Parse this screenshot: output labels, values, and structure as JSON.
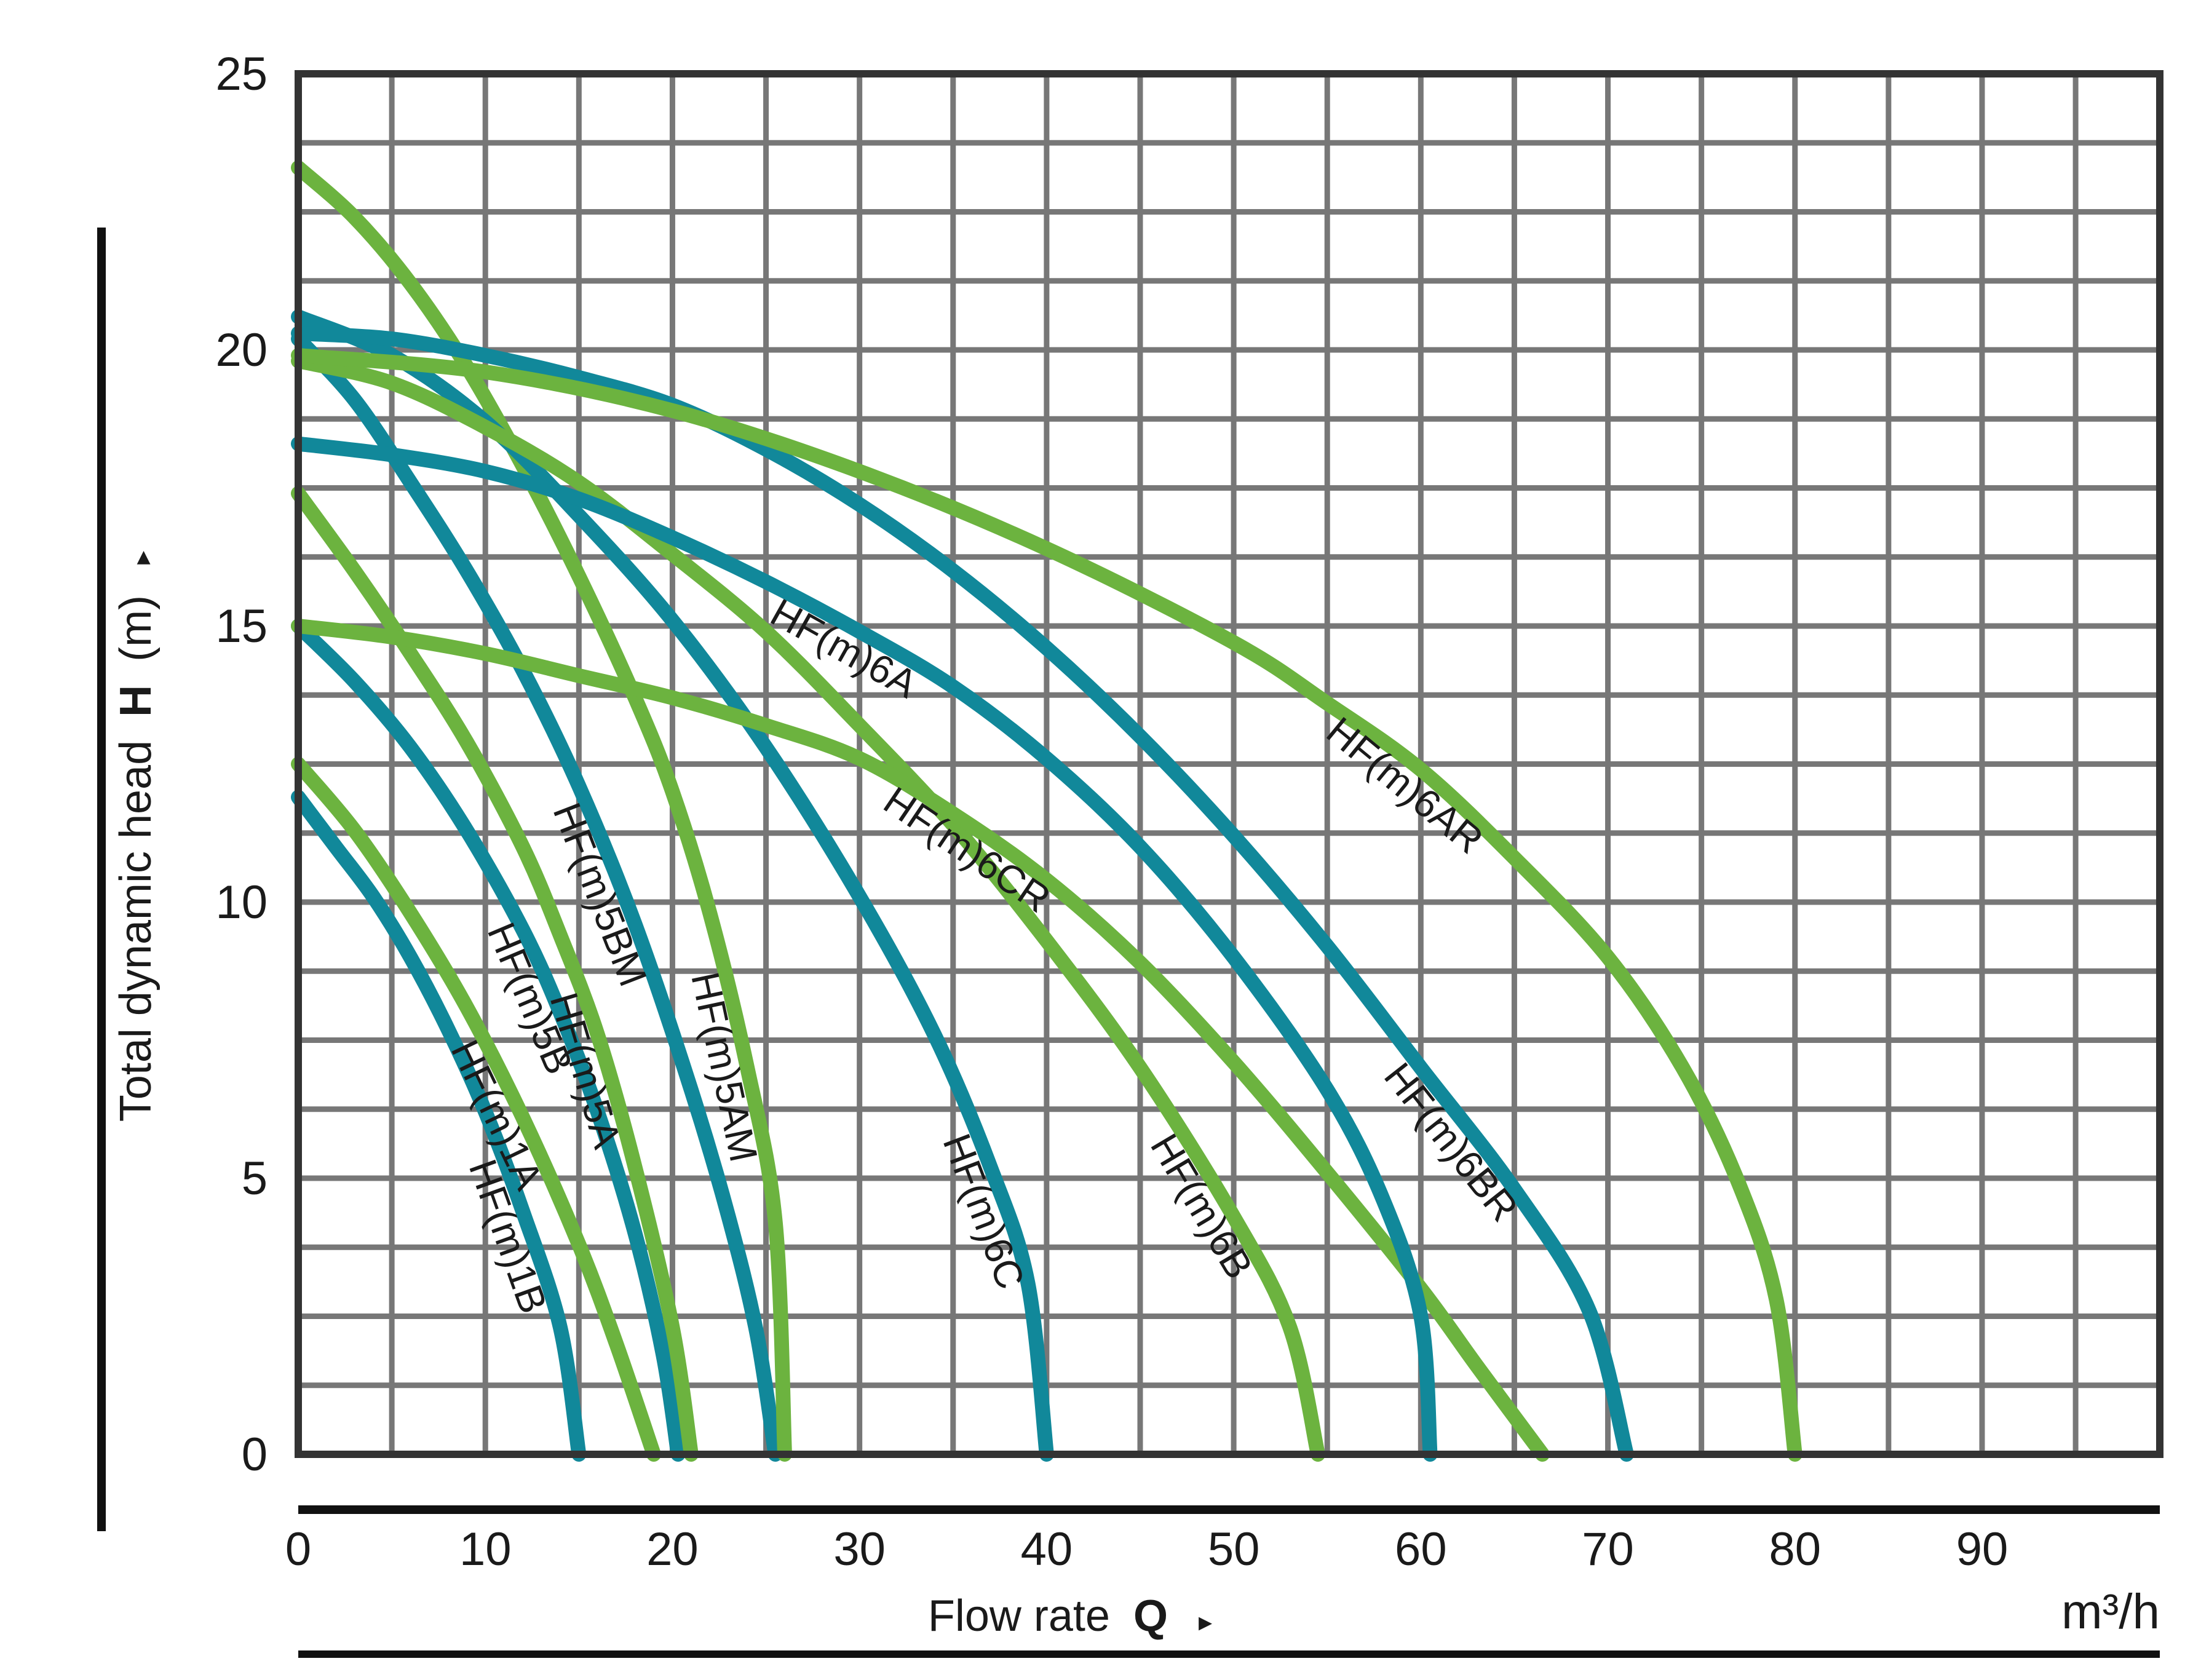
{
  "chart_data": {
    "type": "line",
    "xlabel": "Flow rate",
    "xlabel_symbol": "Q",
    "ylabel": "Total dynamic head",
    "ylabel_symbol": "H",
    "ylabel_unit": "(m)",
    "x_unit": "m³/h",
    "arrow_glyph": "▸",
    "xlim": [
      0,
      99.5
    ],
    "ylim": [
      0,
      25
    ],
    "x_ticks": [
      "0",
      "10",
      "20",
      "30",
      "40",
      "50",
      "60",
      "70",
      "80",
      "90"
    ],
    "y_ticks": [
      "0",
      "5",
      "10",
      "15",
      "20",
      "25"
    ],
    "grid": true,
    "colors": {
      "teal": "#11889a",
      "green": "#6cb33f",
      "grid": "#777777",
      "frame": "#333333"
    },
    "series": [
      {
        "name": "HF(m)1B",
        "color": "teal",
        "points": [
          [
            0,
            11.9
          ],
          [
            2,
            11.0
          ],
          [
            4,
            10.1
          ],
          [
            6,
            9.0
          ],
          [
            8,
            7.7
          ],
          [
            10,
            6.2
          ],
          [
            12,
            4.4
          ],
          [
            14,
            2.3
          ],
          [
            15,
            0
          ]
        ]
      },
      {
        "name": "HF(m)1A",
        "color": "green",
        "points": [
          [
            0,
            12.5
          ],
          [
            3,
            11.3
          ],
          [
            6,
            9.8
          ],
          [
            9,
            8.1
          ],
          [
            12,
            6.1
          ],
          [
            15,
            3.8
          ],
          [
            17,
            2.0
          ],
          [
            19,
            0
          ]
        ]
      },
      {
        "name": "HF(m)5B",
        "color": "teal",
        "points": [
          [
            0,
            15.0
          ],
          [
            3,
            14.0
          ],
          [
            6,
            12.8
          ],
          [
            9,
            11.3
          ],
          [
            12,
            9.5
          ],
          [
            14,
            8.0
          ],
          [
            16,
            6.2
          ],
          [
            18,
            4.0
          ],
          [
            19.5,
            1.8
          ],
          [
            20.3,
            0
          ]
        ]
      },
      {
        "name": "HF(m)5A",
        "color": "green",
        "points": [
          [
            0,
            17.4
          ],
          [
            3,
            16.0
          ],
          [
            6,
            14.5
          ],
          [
            9,
            12.9
          ],
          [
            12,
            11.0
          ],
          [
            14,
            9.4
          ],
          [
            16,
            7.6
          ],
          [
            18,
            5.2
          ],
          [
            20,
            2.3
          ],
          [
            21,
            0
          ]
        ]
      },
      {
        "name": "HF(m)5BM",
        "color": "teal",
        "points": [
          [
            0,
            20.2
          ],
          [
            3,
            19.1
          ],
          [
            6,
            17.6
          ],
          [
            9,
            16.0
          ],
          [
            12,
            14.2
          ],
          [
            15,
            12.1
          ],
          [
            18,
            9.6
          ],
          [
            21,
            6.6
          ],
          [
            23,
            4.3
          ],
          [
            24.5,
            2.2
          ],
          [
            25.5,
            0
          ]
        ]
      },
      {
        "name": "HF(m)5AM",
        "color": "green",
        "points": [
          [
            0,
            23.3
          ],
          [
            3,
            22.4
          ],
          [
            6,
            21.2
          ],
          [
            9,
            19.7
          ],
          [
            12,
            17.9
          ],
          [
            15,
            15.9
          ],
          [
            18,
            13.7
          ],
          [
            20,
            12.0
          ],
          [
            22,
            9.8
          ],
          [
            24,
            7.0
          ],
          [
            25.5,
            4.2
          ],
          [
            26,
            0
          ]
        ]
      },
      {
        "name": "HF(m)6C",
        "color": "teal",
        "points": [
          [
            0,
            20.6
          ],
          [
            5,
            19.9
          ],
          [
            10,
            18.7
          ],
          [
            15,
            17.0
          ],
          [
            20,
            15.1
          ],
          [
            25,
            12.8
          ],
          [
            30,
            10.1
          ],
          [
            34,
            7.6
          ],
          [
            37,
            5.2
          ],
          [
            39,
            3.1
          ],
          [
            40,
            0
          ]
        ]
      },
      {
        "name": "HF(m)6B",
        "color": "green",
        "points": [
          [
            0,
            19.8
          ],
          [
            5,
            19.4
          ],
          [
            10,
            18.6
          ],
          [
            15,
            17.6
          ],
          [
            20,
            16.3
          ],
          [
            25,
            14.9
          ],
          [
            30,
            13.2
          ],
          [
            35,
            11.4
          ],
          [
            40,
            9.3
          ],
          [
            45,
            7.0
          ],
          [
            50,
            4.3
          ],
          [
            53,
            2.3
          ],
          [
            54.5,
            0
          ]
        ]
      },
      {
        "name": "HF(m)6CR",
        "color": "green",
        "points": [
          [
            0,
            15.0
          ],
          [
            5,
            14.8
          ],
          [
            10,
            14.5
          ],
          [
            15,
            14.1
          ],
          [
            20,
            13.7
          ],
          [
            25,
            13.2
          ],
          [
            30,
            12.6
          ],
          [
            35,
            11.6
          ],
          [
            40,
            10.4
          ],
          [
            45,
            8.9
          ],
          [
            50,
            7.1
          ],
          [
            55,
            5.1
          ],
          [
            60,
            3.0
          ],
          [
            63,
            1.6
          ],
          [
            66.5,
            0
          ]
        ]
      },
      {
        "name": "HF(m)6A",
        "color": "teal",
        "points": [
          [
            0,
            18.3
          ],
          [
            5,
            18.1
          ],
          [
            10,
            17.8
          ],
          [
            15,
            17.3
          ],
          [
            20,
            16.6
          ],
          [
            25,
            15.8
          ],
          [
            30,
            14.9
          ],
          [
            35,
            13.9
          ],
          [
            40,
            12.6
          ],
          [
            45,
            11.0
          ],
          [
            50,
            9.0
          ],
          [
            55,
            6.6
          ],
          [
            58,
            4.6
          ],
          [
            60,
            2.5
          ],
          [
            60.5,
            0
          ]
        ]
      },
      {
        "name": "HF(m)6BR",
        "color": "teal",
        "points": [
          [
            0,
            20.3
          ],
          [
            5,
            20.2
          ],
          [
            10,
            19.9
          ],
          [
            15,
            19.5
          ],
          [
            20,
            19.0
          ],
          [
            25,
            18.2
          ],
          [
            30,
            17.2
          ],
          [
            35,
            16.0
          ],
          [
            40,
            14.6
          ],
          [
            45,
            13.0
          ],
          [
            50,
            11.2
          ],
          [
            55,
            9.2
          ],
          [
            60,
            7.0
          ],
          [
            65,
            4.8
          ],
          [
            69,
            2.6
          ],
          [
            71,
            0
          ]
        ]
      },
      {
        "name": "HF(m)6AR",
        "color": "green",
        "points": [
          [
            0,
            19.9
          ],
          [
            10,
            19.6
          ],
          [
            20,
            18.9
          ],
          [
            30,
            17.8
          ],
          [
            40,
            16.4
          ],
          [
            50,
            14.7
          ],
          [
            55,
            13.6
          ],
          [
            60,
            12.4
          ],
          [
            65,
            10.8
          ],
          [
            70,
            9.0
          ],
          [
            74,
            7.0
          ],
          [
            77,
            4.9
          ],
          [
            79,
            2.8
          ],
          [
            80,
            0
          ]
        ]
      }
    ]
  }
}
